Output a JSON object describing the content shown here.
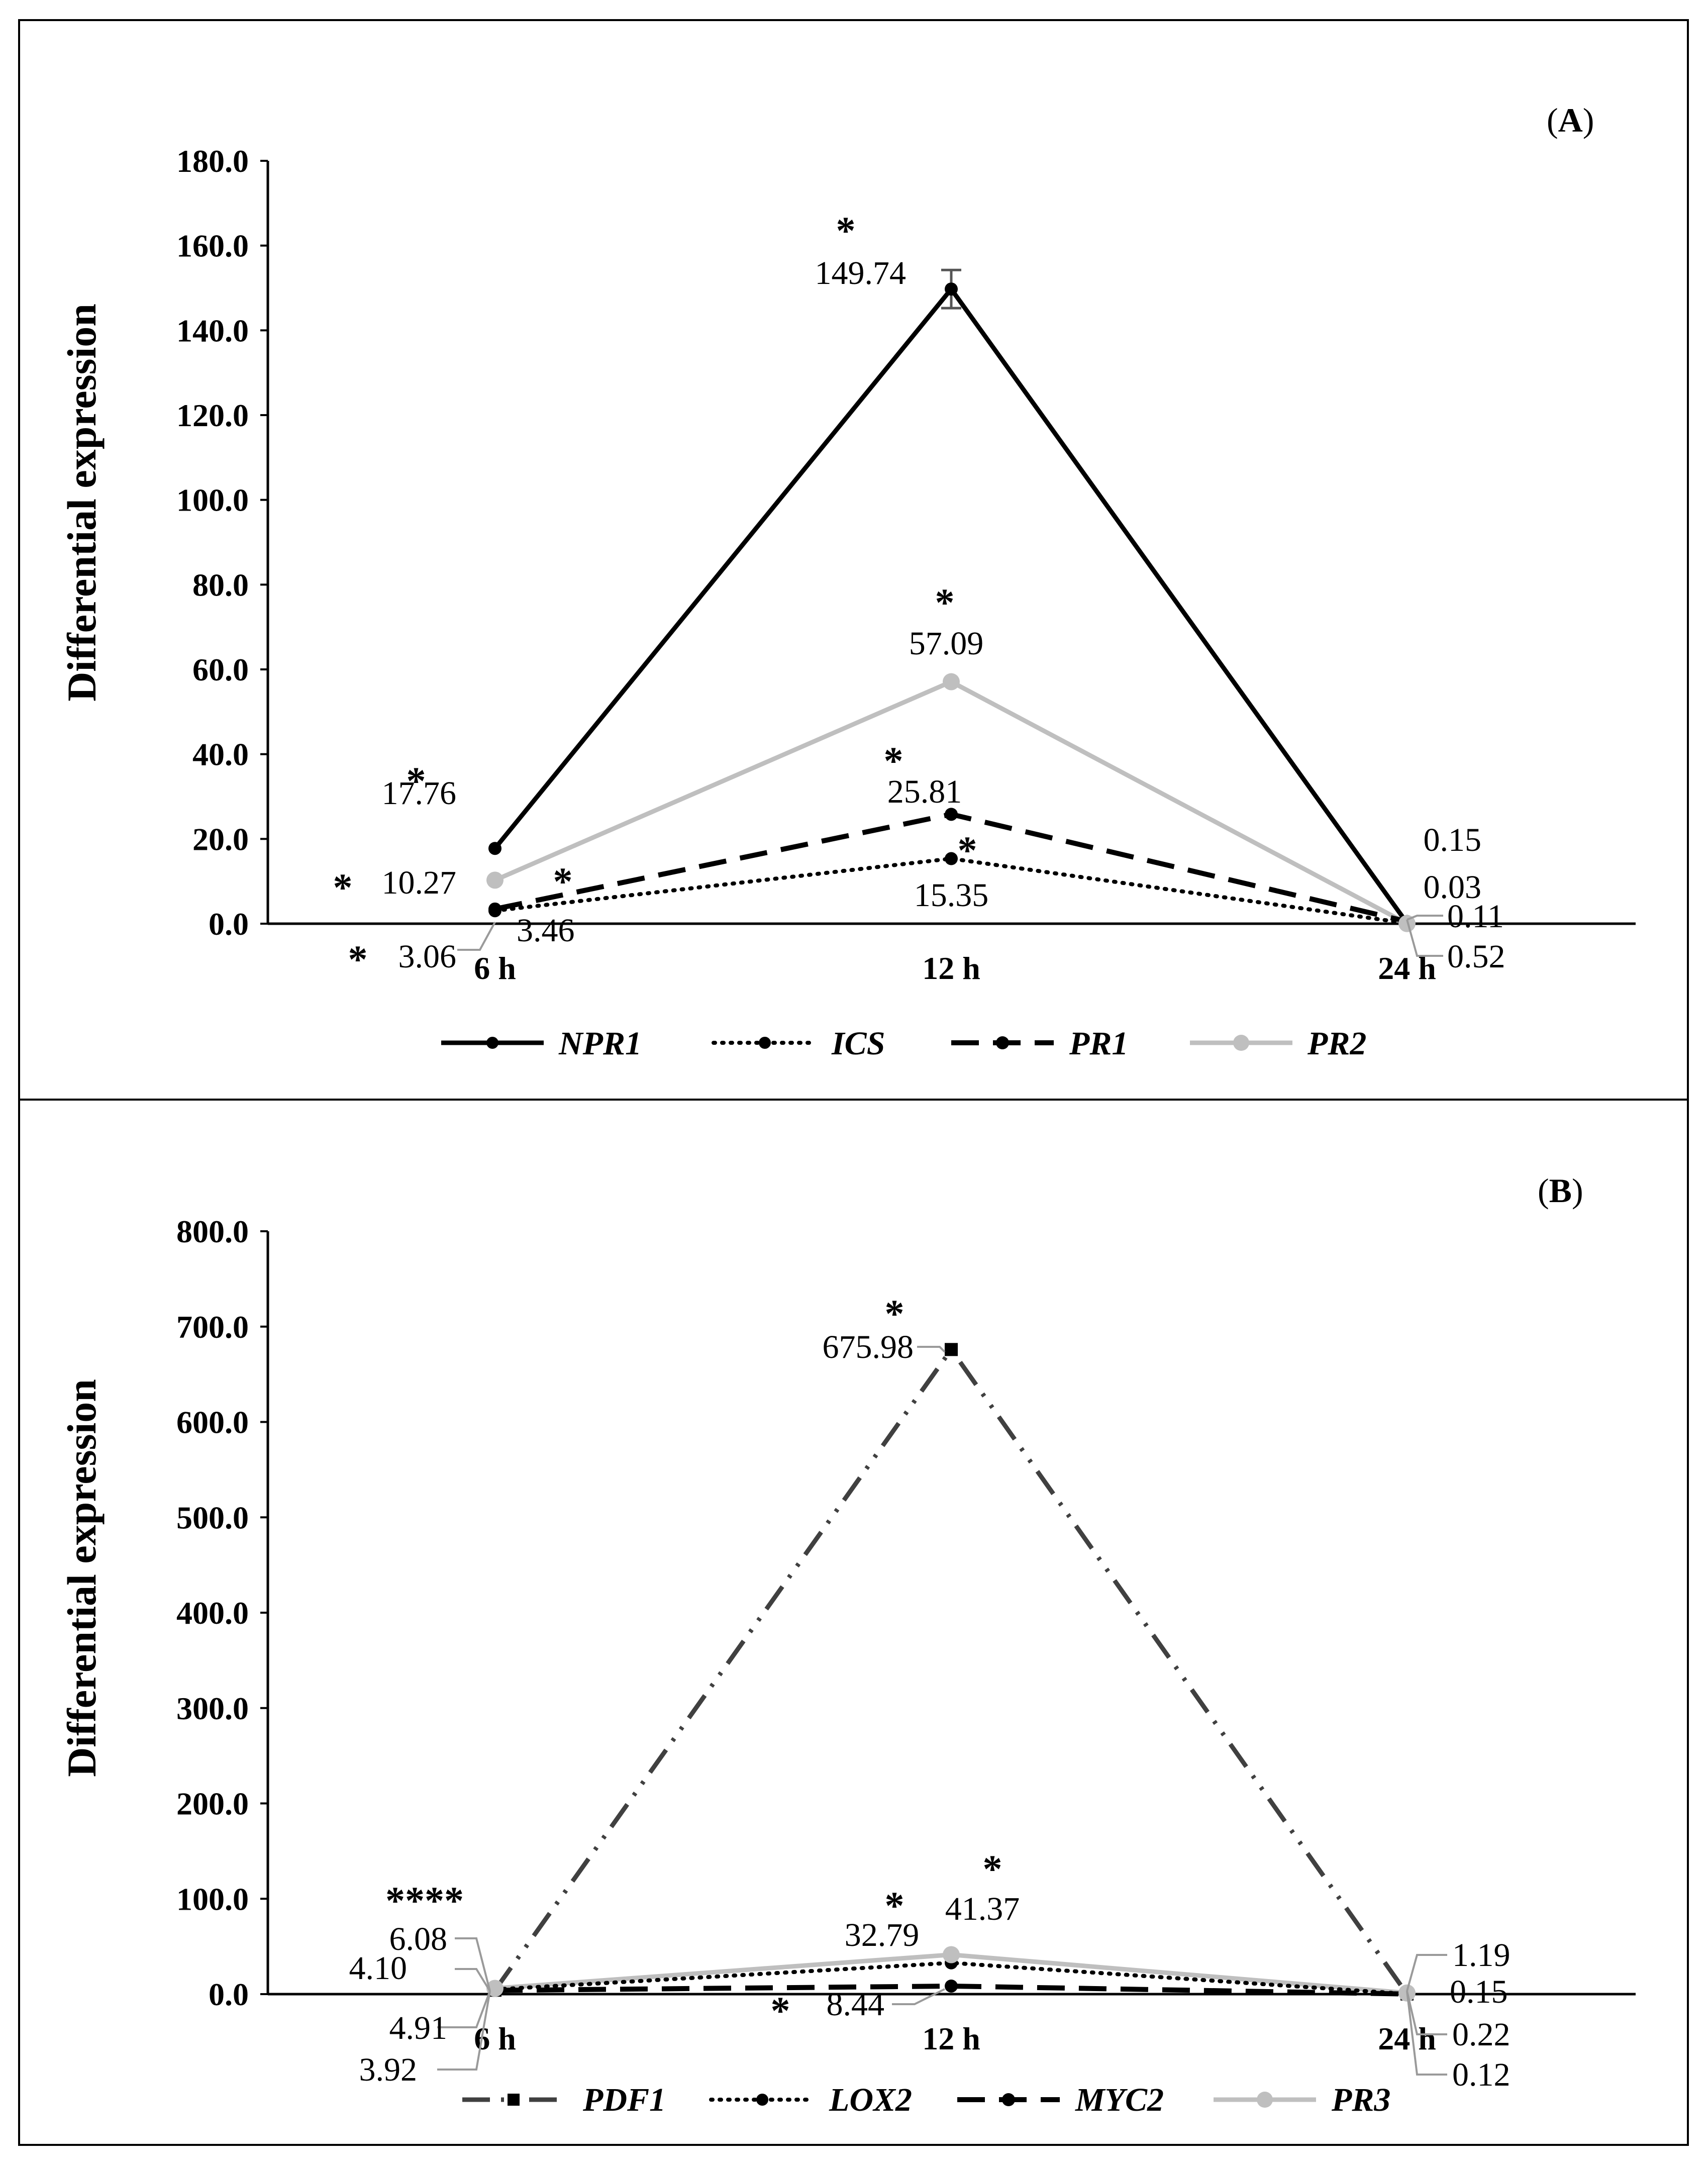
{
  "chart_data": [
    {
      "type": "line",
      "panel_label_open": "(",
      "panel_label": "A",
      "panel_label_close": ")",
      "ylabel": "Differential expression",
      "xlabel": "",
      "categories": [
        "6 h",
        "12 h",
        "24 h"
      ],
      "ylim": [
        0,
        180
      ],
      "yticks": [
        "0.0",
        "20.0",
        "40.0",
        "60.0",
        "80.0",
        "100.0",
        "120.0",
        "140.0",
        "160.0",
        "180.0"
      ],
      "series": [
        {
          "name": "NPR1",
          "values": [
            17.76,
            149.74,
            0.15
          ],
          "labels": [
            "17.76",
            "149.74",
            "0.15"
          ],
          "color": "#000000",
          "dash": "solid",
          "marker": "circle"
        },
        {
          "name": "ICS",
          "values": [
            3.06,
            15.35,
            0.11
          ],
          "labels": [
            "3.06",
            "15.35",
            "0.11"
          ],
          "color": "#000000",
          "dash": "dotted",
          "marker": "circle"
        },
        {
          "name": "PR1",
          "values": [
            3.46,
            25.81,
            0.52
          ],
          "labels": [
            "3.46",
            "25.81",
            "0.52"
          ],
          "color": "#000000",
          "dash": "dashed",
          "marker": "circle"
        },
        {
          "name": "PR2",
          "values": [
            10.27,
            57.09,
            0.03
          ],
          "labels": [
            "10.27",
            "57.09",
            "0.03"
          ],
          "color": "#bfbfbf",
          "dash": "solid",
          "marker": "circle"
        }
      ],
      "significance": "*",
      "error_bar": {
        "series": "NPR1",
        "category": "12 h",
        "value": 4.5
      }
    },
    {
      "type": "line",
      "panel_label_open": "(",
      "panel_label": "B",
      "panel_label_close": ")",
      "ylabel": "Differential expression",
      "xlabel": "",
      "categories": [
        "6 h",
        "12 h",
        "24 h"
      ],
      "ylim": [
        0,
        800
      ],
      "yticks": [
        "0.0",
        "100.0",
        "200.0",
        "300.0",
        "400.0",
        "500.0",
        "600.0",
        "700.0",
        "800.0"
      ],
      "series": [
        {
          "name": "PDF1",
          "values": [
            4.1,
            675.98,
            0.15
          ],
          "labels": [
            "4.10",
            "675.98",
            "0.15"
          ],
          "color": "#404040",
          "dash": "dashdotdot",
          "marker": "square"
        },
        {
          "name": "LOX2",
          "values": [
            4.91,
            32.79,
            0.22
          ],
          "labels": [
            "4.91",
            "32.79",
            "0.22"
          ],
          "color": "#000000",
          "dash": "dotted",
          "marker": "circle"
        },
        {
          "name": "MYC2",
          "values": [
            3.92,
            8.44,
            0.12
          ],
          "labels": [
            "3.92",
            "8.44",
            "0.12"
          ],
          "color": "#000000",
          "dash": "dashed",
          "marker": "circle"
        },
        {
          "name": "PR3",
          "values": [
            6.08,
            41.37,
            1.19
          ],
          "labels": [
            "6.08",
            "41.37",
            "1.19"
          ],
          "color": "#bfbfbf",
          "dash": "solid",
          "marker": "circle"
        }
      ],
      "significance": "*",
      "significance_6h": "****"
    }
  ]
}
